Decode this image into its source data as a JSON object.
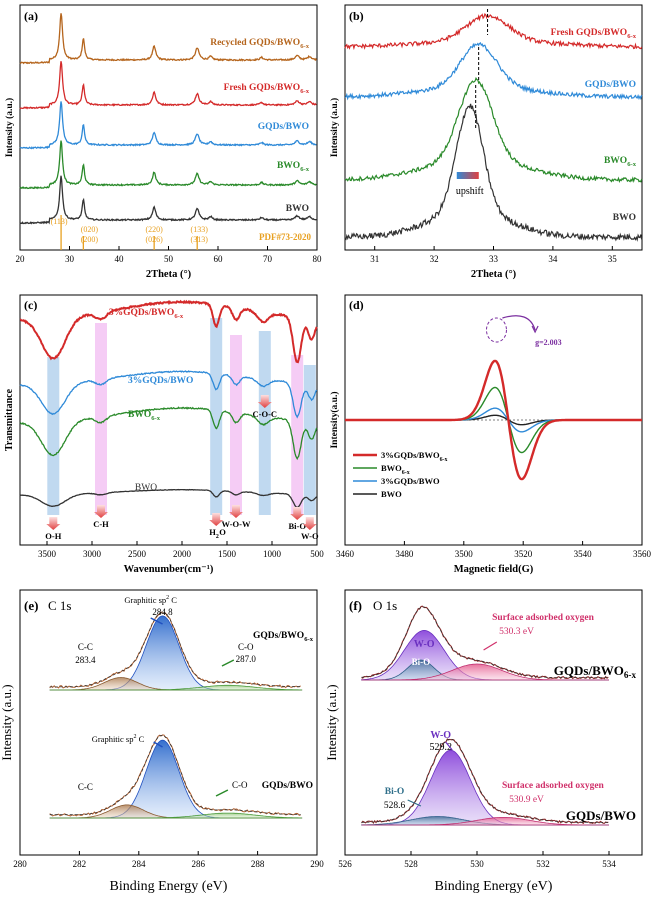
{
  "chart_data": [
    {
      "panel": "(a)",
      "type": "line",
      "title": "",
      "xlabel": "2Theta (°)",
      "ylabel": "Intensity (a.u.)",
      "xlim": [
        20,
        80
      ],
      "xticks": [
        20,
        30,
        40,
        50,
        60,
        70,
        80
      ],
      "series": [
        {
          "name": "Recycled GQDs/BWO6-x",
          "label": "Recycled GQDs/BWO",
          "sub": "6-x",
          "color": "#b5651d"
        },
        {
          "name": "Fresh GQDs/BWO6-x",
          "label": "Fresh GQDs/BWO",
          "sub": "6-x",
          "color": "#d42a2a"
        },
        {
          "name": "GQDs/BWO",
          "label": "GQDs/BWO",
          "sub": "",
          "color": "#2f8ad8"
        },
        {
          "name": "BWO6-x",
          "label": "BWO",
          "sub": "6-x",
          "color": "#2a8a2a"
        },
        {
          "name": "BWO",
          "label": "BWO",
          "sub": "",
          "color": "#333333"
        }
      ],
      "peaks": [
        28.3,
        32.8,
        47.1,
        55.8,
        58.5,
        68.8,
        76.0,
        78.5
      ],
      "reference": {
        "label": "PDF#73-2020",
        "lines": [
          {
            "x": 28.3,
            "label": "(113)"
          },
          {
            "x": 32.8,
            "label": "(020)"
          },
          {
            "x": 32.8,
            "label": "(200)"
          },
          {
            "x": 47.1,
            "label": "(220)"
          },
          {
            "x": 47.1,
            "label": "(026)"
          },
          {
            "x": 55.8,
            "label": "(133)"
          },
          {
            "x": 55.8,
            "label": "(313)"
          }
        ],
        "color": "#e8a020"
      }
    },
    {
      "panel": "(b)",
      "type": "line",
      "xlabel": "2Theta (°)",
      "ylabel": "Intensity (a.u.)",
      "xlim": [
        30.5,
        35.5
      ],
      "xticks": [
        31,
        32,
        33,
        34,
        35
      ],
      "series": [
        {
          "name": "Fresh GQDs/BWO6-x",
          "label": "Fresh GQDs/BWO",
          "sub": "6-x",
          "color": "#d42a2a",
          "peak": 32.9
        },
        {
          "name": "GQDs/BWO",
          "label": "GQDs/BWO",
          "sub": "",
          "color": "#2f8ad8",
          "peak": 32.75
        },
        {
          "name": "BWO6-x",
          "label": "BWO",
          "sub": "6-x",
          "color": "#2a8a2a",
          "peak": 32.7
        },
        {
          "name": "BWO",
          "label": "BWO",
          "sub": "",
          "color": "#333333",
          "peak": 32.6
        }
      ],
      "annotation": "upshift"
    },
    {
      "panel": "(c)",
      "type": "line",
      "xlabel": "Wavenumber(cm⁻¹)",
      "ylabel": "Transmittance",
      "xlim": [
        3800,
        500
      ],
      "xticks": [
        3500,
        3000,
        2500,
        2000,
        1500,
        1000,
        500
      ],
      "series": [
        {
          "name": "3%GQDs/BWO6-x",
          "label": "3%GQDs/BWO",
          "sub": "6-x",
          "color": "#d42a2a"
        },
        {
          "name": "3%GQDs/BWO",
          "label": "3%GQDs/BWO",
          "sub": "",
          "color": "#2f8ad8"
        },
        {
          "name": "BWO6-x",
          "label": "BWO",
          "sub": "6-x",
          "color": "#2a8a2a"
        },
        {
          "name": "BWO",
          "label": "BWO",
          "sub": "",
          "color": "#333333"
        }
      ],
      "bands": [
        {
          "x": 3430,
          "label": "O-H",
          "color": "#9ec5e8"
        },
        {
          "x": 2900,
          "label": "C-H",
          "color": "#f0b0f0"
        },
        {
          "x": 1620,
          "label": "H2O",
          "label_main": "H",
          "label_sub": "2",
          "label_tail": "O",
          "color": "#9ec5e8"
        },
        {
          "x": 1400,
          "label": "W-O-W",
          "color": "#f0b0f0"
        },
        {
          "x": 1080,
          "label": "C-O-C",
          "color": "#9ec5e8"
        },
        {
          "x": 720,
          "label": "Bi-O",
          "color": "#f0b0f0"
        },
        {
          "x": 580,
          "label": "W-O",
          "color": "#9ec5e8"
        }
      ]
    },
    {
      "panel": "(d)",
      "type": "line",
      "xlabel": "Magnetic field(G)",
      "ylabel": "Intensity(a.u.)",
      "xlim": [
        3460,
        3560
      ],
      "xticks": [
        3460,
        3480,
        3500,
        3520,
        3540,
        3560
      ],
      "g_value": "g=2.003",
      "center": 3515,
      "series": [
        {
          "name": "3%GQDs/BWO6-x",
          "label": "3%GQDs/BWO",
          "sub": "6-x",
          "color": "#d42a2a",
          "amp": 1.0
        },
        {
          "name": "BWO6-x",
          "label": "BWO",
          "sub": "6-x",
          "color": "#2a8a2a",
          "amp": 0.55
        },
        {
          "name": "3%GQDs/BWO",
          "label": "3%GQDs/BWO",
          "sub": "",
          "color": "#2f8ad8",
          "amp": 0.2
        },
        {
          "name": "BWO",
          "label": "BWO",
          "sub": "",
          "color": "#222222",
          "amp": 0.08
        }
      ]
    },
    {
      "panel": "(e)",
      "title": "C 1s",
      "type": "line",
      "xlabel": "Binding Energy (eV)",
      "ylabel": "Intensity (a.u.)",
      "xlim": [
        280,
        290
      ],
      "xticks": [
        280,
        282,
        284,
        286,
        288,
        290
      ],
      "samples": [
        {
          "name": "GQDs/BWO6-x",
          "label": "GQDs/BWO",
          "sub": "6-x",
          "peaks": [
            {
              "label": "Graphitic sp2 C",
              "main": "Graphitic sp",
              "sup": "2",
              "tail": " C",
              "value": "284.8",
              "x": 284.8
            },
            {
              "label": "C-C",
              "value": "283.4",
              "x": 283.4
            },
            {
              "label": "C-O",
              "value": "287.0",
              "x": 287.0
            }
          ]
        },
        {
          "name": "GQDs/BWO",
          "label": "GQDs/BWO",
          "peaks": [
            {
              "label": "Graphitic sp2 C",
              "main": "Graphitic sp",
              "sup": "2",
              "tail": " C",
              "x": 284.8
            },
            {
              "label": "C-C",
              "x": 283.6
            },
            {
              "label": "C-O",
              "x": 287.0
            }
          ]
        }
      ]
    },
    {
      "panel": "(f)",
      "title": "O 1s",
      "type": "line",
      "xlabel": "Binding Energy (eV)",
      "ylabel": "Intensity (a.u.)",
      "xlim": [
        526,
        535
      ],
      "xticks": [
        526,
        528,
        530,
        532,
        534
      ],
      "samples": [
        {
          "name": "GQDs/BWO6-x",
          "label": "GQDs/BWO",
          "sub": "6-x",
          "peaks": [
            {
              "label": "W-O",
              "x": 528.4
            },
            {
              "label": "Bi-O",
              "x": 528.3
            },
            {
              "label": "Surface adsorbed oxygen",
              "value": "530.3 eV",
              "x": 530.3
            }
          ]
        },
        {
          "name": "GQDs/BWO",
          "label": "GQDs/BWO",
          "peaks": [
            {
              "label": "W-O",
              "value": "529.2",
              "x": 529.2
            },
            {
              "label": "Bi-O",
              "value": "528.6",
              "x": 528.6
            },
            {
              "label": "Surface adsorbed oxygen",
              "value": "530.9 eV",
              "x": 530.9
            }
          ]
        }
      ]
    }
  ],
  "arrow_label": "upshift"
}
